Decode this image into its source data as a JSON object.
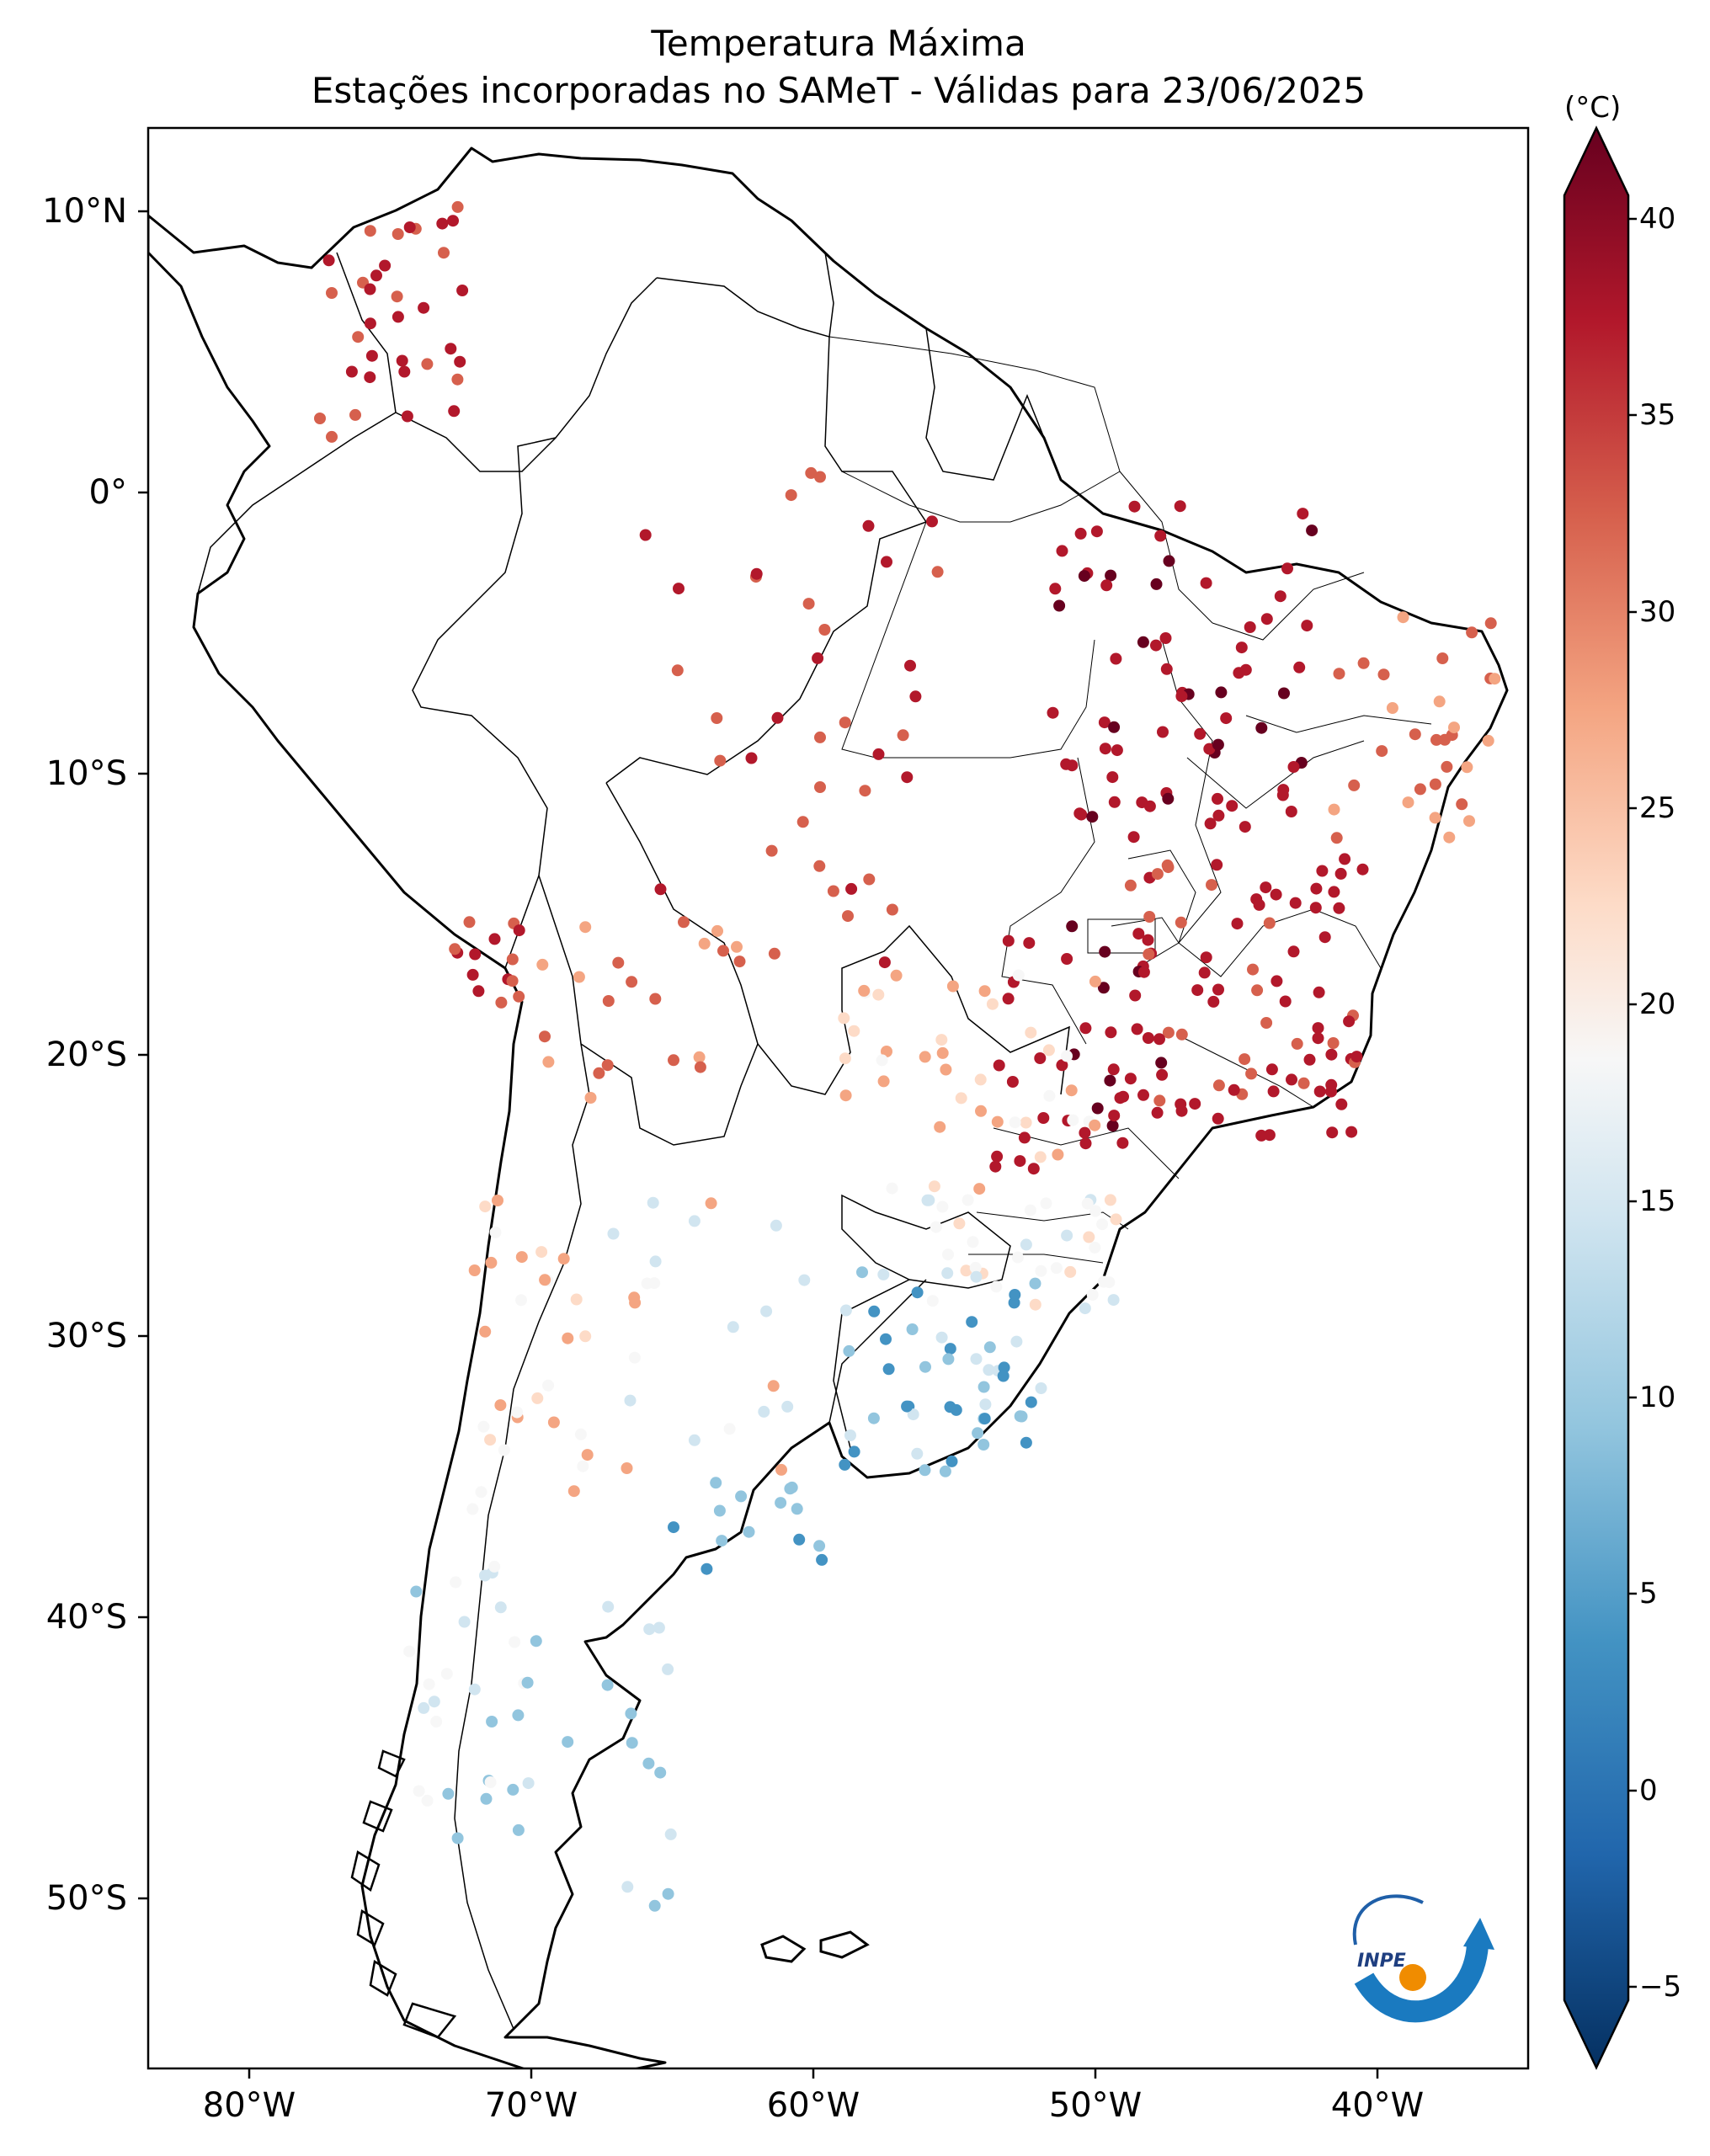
{
  "title": {
    "line1": "Temperatura Máxima",
    "line2": "Estações incorporadas no SAMeT - Válidas para 23/06/2025"
  },
  "axes": {
    "lat_labels": [
      "10°N",
      "0°",
      "10°S",
      "20°S",
      "30°S",
      "40°S",
      "50°S"
    ],
    "lon_labels": [
      "80°W",
      "70°W",
      "60°W",
      "50°W",
      "40°W"
    ]
  },
  "colorbar": {
    "unit": "(°C)",
    "ticks": [
      "40",
      "35",
      "30",
      "25",
      "20",
      "15",
      "10",
      "5",
      "0",
      "−5"
    ],
    "min": -5,
    "max": 40
  },
  "logo": {
    "text": "INPE"
  },
  "colors": {
    "cb_top": "#67001f",
    "cb_red": "#b2182b",
    "cb_orange": "#d6604d",
    "cb_salmon": "#f4a582",
    "cb_pink": "#fddbc7",
    "cb_white": "#f7f7f7",
    "cb_lightblue": "#d1e5f0",
    "cb_skyblue": "#92c5de",
    "cb_blue": "#4393c3",
    "cb_darkblue": "#2166ac",
    "cb_bottom": "#053061"
  }
}
